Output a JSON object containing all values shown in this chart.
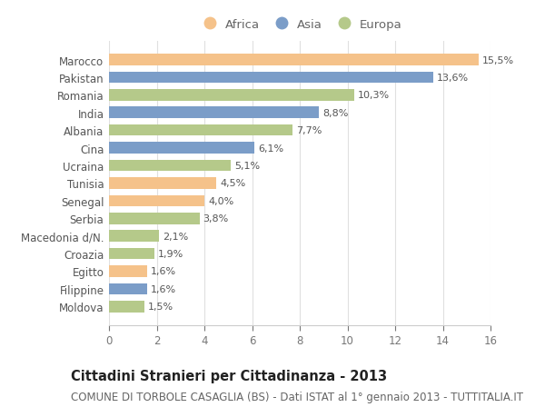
{
  "categories": [
    "Marocco",
    "Pakistan",
    "Romania",
    "India",
    "Albania",
    "Cina",
    "Ucraina",
    "Tunisia",
    "Senegal",
    "Serbia",
    "Macedonia d/N.",
    "Croazia",
    "Egitto",
    "Filippine",
    "Moldova"
  ],
  "values": [
    15.5,
    13.6,
    10.3,
    8.8,
    7.7,
    6.1,
    5.1,
    4.5,
    4.0,
    3.8,
    2.1,
    1.9,
    1.6,
    1.6,
    1.5
  ],
  "labels": [
    "15,5%",
    "13,6%",
    "10,3%",
    "8,8%",
    "7,7%",
    "6,1%",
    "5,1%",
    "4,5%",
    "4,0%",
    "3,8%",
    "2,1%",
    "1,9%",
    "1,6%",
    "1,6%",
    "1,5%"
  ],
  "continents": [
    "Africa",
    "Asia",
    "Europa",
    "Asia",
    "Europa",
    "Asia",
    "Europa",
    "Africa",
    "Africa",
    "Europa",
    "Europa",
    "Europa",
    "Africa",
    "Asia",
    "Europa"
  ],
  "colors": {
    "Africa": "#F5C28A",
    "Asia": "#7B9DC8",
    "Europa": "#B5C98A"
  },
  "legend_order": [
    "Africa",
    "Asia",
    "Europa"
  ],
  "title": "Cittadini Stranieri per Cittadinanza - 2013",
  "subtitle": "COMUNE DI TORBOLE CASAGLIA (BS) - Dati ISTAT al 1° gennaio 2013 - TUTTITALIA.IT",
  "xlim": [
    0,
    16
  ],
  "xticks": [
    0,
    2,
    4,
    6,
    8,
    10,
    12,
    14,
    16
  ],
  "bg_color": "#ffffff",
  "bar_height": 0.65,
  "label_fontsize": 8.0,
  "tick_fontsize": 8.5,
  "title_fontsize": 10.5,
  "subtitle_fontsize": 8.5
}
